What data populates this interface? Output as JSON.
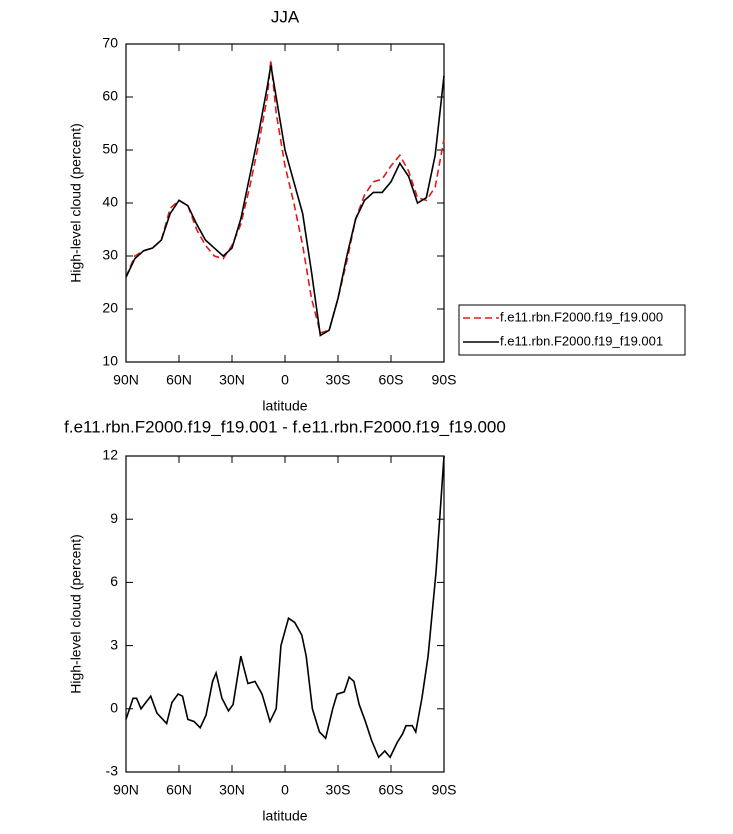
{
  "chart_data": [
    {
      "type": "line",
      "title": "JJA",
      "xlabel": "latitude",
      "ylabel": "High-level cloud (percent)",
      "x": [
        90,
        85,
        80,
        75,
        70,
        65,
        60,
        55,
        50,
        45,
        40,
        35,
        30,
        25,
        20,
        15,
        10,
        8,
        5,
        0,
        -5,
        -10,
        -15,
        -20,
        -25,
        -30,
        -35,
        -40,
        -45,
        -50,
        -55,
        -60,
        -65,
        -70,
        -75,
        -80,
        -85,
        -90
      ],
      "series": [
        {
          "name": "f.e11.rbn.F2000.f19_f19.000",
          "color": "#e31a1c",
          "dashed": true,
          "values": [
            26,
            30,
            31,
            31.5,
            33,
            39,
            40.5,
            39.5,
            35,
            32,
            30,
            29.5,
            32,
            36,
            43,
            51,
            60,
            67,
            57,
            47,
            40,
            32,
            22,
            15.5,
            16,
            22,
            29,
            37,
            41.5,
            44,
            44.5,
            47,
            49,
            46,
            41,
            40.5,
            43,
            52
          ]
        },
        {
          "name": "f.e11.rbn.F2000.f19_f19.001",
          "color": "#000000",
          "dashed": false,
          "values": [
            26,
            29.5,
            31,
            31.5,
            33,
            38,
            40.5,
            39.5,
            36,
            33,
            31.5,
            30,
            31.5,
            37,
            45,
            53,
            62,
            66,
            60,
            50,
            44,
            38,
            27,
            15,
            16,
            22,
            30,
            37,
            40.5,
            42,
            42,
            44,
            47.5,
            45,
            40,
            41,
            49,
            64
          ]
        }
      ],
      "xlim": [
        90,
        -90
      ],
      "xticks": [
        {
          "value": 90,
          "label": "90N"
        },
        {
          "value": 60,
          "label": "60N"
        },
        {
          "value": 30,
          "label": "30N"
        },
        0,
        {
          "value": -30,
          "label": "30S"
        },
        {
          "value": -60,
          "label": "60S"
        },
        {
          "value": -90,
          "label": "90S"
        }
      ],
      "ylim": [
        10,
        70
      ],
      "yticks": [
        10,
        20,
        30,
        40,
        50,
        60,
        70
      ],
      "legend": "right"
    },
    {
      "type": "line",
      "title": "f.e11.rbn.F2000.f19_f19.001 - f.e11.rbn.F2000.f19_f19.000",
      "xlabel": "latitude",
      "ylabel": "High-level cloud (percent)",
      "x": [
        90,
        86,
        84,
        81.5,
        76,
        72.5,
        67,
        64,
        60.5,
        58,
        55,
        51.5,
        48,
        44.7,
        41,
        39,
        35.7,
        32,
        29.4,
        25,
        21,
        17,
        13,
        8.5,
        5,
        2.3,
        -2,
        -5.5,
        -9.5,
        -12,
        -15.5,
        -19.5,
        -23,
        -27,
        -29.5,
        -33.5,
        -36.3,
        -39,
        -42,
        -45.5,
        -49,
        -53,
        -56.5,
        -59.5,
        -63.5,
        -66.5,
        -68.5,
        -72,
        -74,
        -77.5,
        -81,
        -85.5,
        -90
      ],
      "series": [
        {
          "color": "#000000",
          "dashed": false,
          "values": [
            -0.5,
            0.5,
            0.5,
            0,
            0.6,
            -0.2,
            -0.7,
            0.3,
            0.7,
            0.6,
            -0.5,
            -0.6,
            -0.9,
            -0.3,
            1.3,
            1.7,
            0.5,
            -0.1,
            0.2,
            2.5,
            1.2,
            1.3,
            0.7,
            -0.6,
            0,
            3,
            4.3,
            4.1,
            3.5,
            2.5,
            0,
            -1.1,
            -1.4,
            0,
            0.7,
            0.8,
            1.5,
            1.3,
            0.2,
            -0.6,
            -1.5,
            -2.3,
            -2.0,
            -2.3,
            -1.6,
            -1.2,
            -0.8,
            -0.8,
            -1.1,
            0.5,
            2.5,
            6.5,
            12
          ]
        }
      ],
      "xlim": [
        90,
        -90
      ],
      "xticks": [
        {
          "value": 90,
          "label": "90N"
        },
        {
          "value": 60,
          "label": "60N"
        },
        {
          "value": 30,
          "label": "30N"
        },
        0,
        {
          "value": -30,
          "label": "30S"
        },
        {
          "value": -60,
          "label": "60S"
        },
        {
          "value": -90,
          "label": "90S"
        }
      ],
      "ylim": [
        -3,
        12
      ],
      "yticks": [
        -3,
        0,
        3,
        6,
        9,
        12
      ]
    }
  ]
}
